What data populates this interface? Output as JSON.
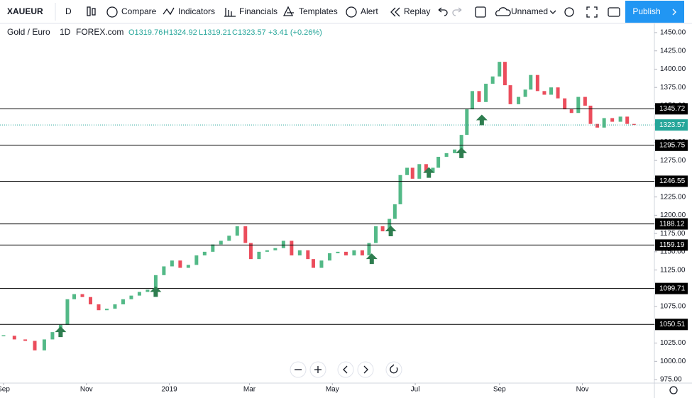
{
  "toolbar": {
    "symbol": "XAUEUR",
    "interval": "D",
    "buttons": [
      "Compare",
      "Indicators",
      "Financials",
      "Templates",
      "Alert",
      "Replay"
    ],
    "layout_name": "Unnamed",
    "publish": "Publish"
  },
  "chart_data": {
    "type": "candlestick",
    "symbol_name": "Gold / Euro",
    "interval": "1D",
    "source": "FOREX.com",
    "legend": {
      "open": "O1319.76",
      "high": "H1324.92",
      "low": "L1319.21",
      "close": "C1323.57",
      "change": "+3.41 (+0.26%)"
    },
    "x": [
      0,
      8,
      16,
      23,
      30,
      36,
      42,
      47,
      52,
      58,
      64,
      70,
      76,
      82,
      88,
      94,
      100,
      106,
      112,
      118,
      124,
      130,
      136,
      142,
      148,
      154,
      160,
      166,
      172,
      178,
      182,
      188,
      194,
      200,
      206,
      212,
      218,
      224,
      228,
      234,
      240,
      246,
      252,
      258,
      264,
      269,
      274,
      279,
      284,
      288,
      292,
      297,
      301,
      306,
      311,
      316,
      320,
      326,
      332,
      337,
      341,
      345,
      350,
      355,
      360,
      365,
      369,
      373,
      379,
      384,
      388,
      393,
      398,
      403,
      408,
      413,
      418,
      423,
      428,
      432,
      437,
      442,
      448,
      454,
      459,
      464
    ],
    "values": [
      1035,
      1030,
      1028,
      1015,
      1030,
      1040,
      1050,
      1085,
      1092,
      1088,
      1078,
      1070,
      1072,
      1078,
      1085,
      1090,
      1095,
      1098,
      1118,
      1130,
      1138,
      1128,
      1132,
      1145,
      1150,
      1160,
      1165,
      1172,
      1185,
      1162,
      1140,
      1150,
      1152,
      1155,
      1165,
      1145,
      1152,
      1140,
      1128,
      1138,
      1148,
      1150,
      1145,
      1152,
      1145,
      1162,
      1185,
      1178,
      1195,
      1215,
      1255,
      1265,
      1250,
      1270,
      1258,
      1265,
      1280,
      1285,
      1290,
      1310,
      1345,
      1370,
      1355,
      1380,
      1390,
      1410,
      1378,
      1352,
      1362,
      1372,
      1392,
      1370,
      1365,
      1375,
      1360,
      1345,
      1340,
      1362,
      1350,
      1325,
      1320,
      1333,
      1328,
      1335,
      1325,
      1323.57
    ],
    "up_color": "#53b987",
    "down_color": "#eb4d5c",
    "xlim": [
      -2.6,
      479
    ],
    "xticks": [
      {
        "value": 0,
        "label": "Sep"
      },
      {
        "value": 61,
        "label": "Nov"
      },
      {
        "value": 122,
        "label": "2019"
      },
      {
        "value": 181,
        "label": "Mar"
      },
      {
        "value": 242,
        "label": "May"
      },
      {
        "value": 303,
        "label": "Jul"
      },
      {
        "value": 365,
        "label": "Sep"
      },
      {
        "value": 426,
        "label": "Nov"
      }
    ],
    "ylim": [
      970.2,
      1462.6
    ],
    "yticks": [
      {
        "value": 1450,
        "label": "1450.00"
      },
      {
        "value": 1425,
        "label": "1425.00"
      },
      {
        "value": 1400,
        "label": "1400.00"
      },
      {
        "value": 1375,
        "label": "1375.00"
      },
      {
        "value": 1350,
        "label": "1350.00"
      },
      {
        "value": 1325,
        "label": "1325.00"
      },
      {
        "value": 1300,
        "label": "1300.00"
      },
      {
        "value": 1275,
        "label": "1275.00"
      },
      {
        "value": 1250,
        "label": "1250.00"
      },
      {
        "value": 1225,
        "label": "1225.00"
      },
      {
        "value": 1200,
        "label": "1200.00"
      },
      {
        "value": 1175,
        "label": "1175.00"
      },
      {
        "value": 1150,
        "label": "1150.00"
      },
      {
        "value": 1125,
        "label": "1125.00"
      },
      {
        "value": 1100,
        "label": "1100.00"
      },
      {
        "value": 1075,
        "label": "1075.00"
      },
      {
        "value": 1050,
        "label": "1050.00"
      },
      {
        "value": 1025,
        "label": "1025.00"
      },
      {
        "value": 1000,
        "label": "1000.00"
      },
      {
        "value": 975,
        "label": "975.00"
      }
    ],
    "levels": [
      1345.72,
      1295.75,
      1246.55,
      1188.12,
      1159.19,
      1099.71,
      1050.51
    ],
    "level_color": "#000000",
    "last_price": 1323.57,
    "last_price_color": "#26a69a",
    "markers": [
      {
        "x": 42,
        "value": 1040
      },
      {
        "x": 112,
        "value": 1095
      },
      {
        "x": 271,
        "value": 1140
      },
      {
        "x": 285,
        "value": 1178
      },
      {
        "x": 313,
        "value": 1258
      },
      {
        "x": 337,
        "value": 1285
      },
      {
        "x": 352,
        "value": 1330
      }
    ],
    "marker_color": "#2e7d4f"
  }
}
